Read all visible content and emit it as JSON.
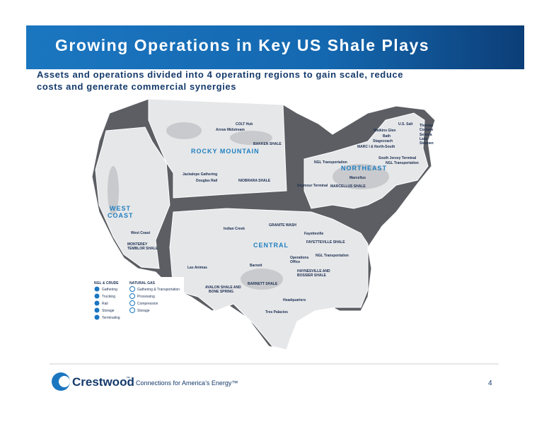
{
  "header": {
    "title": "Growing Operations in Key US Shale Plays",
    "subtitle": [
      "Assets and operations divided into 4 operating regions to gain scale, reduce",
      "costs and generate commercial synergies"
    ]
  },
  "regions": [
    "ROCKY MOUNTAIN",
    "NORTHEAST",
    "WEST",
    "COAST",
    "CENTRAL"
  ],
  "map_labels": [
    "COLT Hub",
    "Arrow Midstream",
    "BAKKEN SHALE",
    "Jackalope Gathering",
    "Douglas Rail",
    "NIOBRARA SHALE",
    "U.S. Salt",
    "Watkins Glen",
    "Bath",
    "Stagecoach",
    "MARC I & North-South",
    "Thomas",
    "Corners",
    "Seneca",
    "Lake",
    "Steuben",
    "South Jersey Terminal",
    "NGL Transportation",
    "NGL Transportation",
    "Marcellus",
    "MARCELLUS SHALE",
    "Seymour Terminal",
    "West Coast",
    "MONTEREY",
    "TEMBLOR SHALE",
    "Indian Creek",
    "GRANITE WASH",
    "Fayetteville",
    "FAYETTEVILLE SHALE",
    "Operations",
    "Office",
    "NGL Transportation",
    "HAYNESVILLE AND",
    "BOSSIER SHALE",
    "Barnett",
    "Las Animas",
    "AVALON SHALE AND",
    "BONE SPRING",
    "BARNETT SHALE",
    "Headquarters",
    "Tres Palacios"
  ],
  "legend": {
    "ngl_heading": "NGL & CRUDE",
    "ngl_items": [
      "Gathering",
      "Trucking",
      "Rail",
      "Storage",
      "Terminaling"
    ],
    "gas_heading": "NATURAL GAS",
    "gas_items": [
      "Gathering & Transportation",
      "Processing",
      "Compression",
      "Storage"
    ]
  },
  "footer": {
    "brand": "Crestwood",
    "trademark": "™",
    "tagline": "Connections for America’s Energy™",
    "page": "4"
  }
}
